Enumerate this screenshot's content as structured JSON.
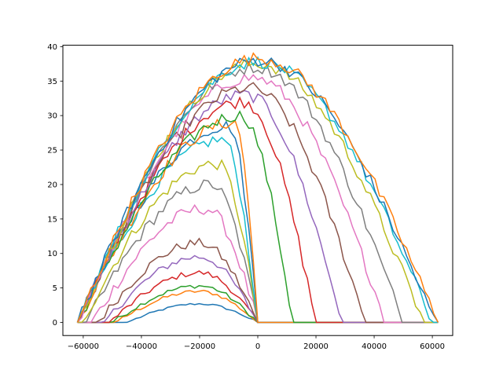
{
  "chart_data": {
    "type": "line",
    "title": "",
    "xlabel": "",
    "ylabel": "",
    "xlim": [
      -67000,
      67000
    ],
    "ylim": [
      -1.9,
      40.2
    ],
    "x_ticks": [
      -60000,
      -40000,
      -20000,
      0,
      20000,
      40000,
      60000
    ],
    "x_tick_labels": [
      "−60000",
      "−40000",
      "−20000",
      "0",
      "20000",
      "40000",
      "60000"
    ],
    "y_ticks": [
      0,
      5,
      10,
      15,
      20,
      25,
      30,
      35,
      40
    ],
    "y_tick_labels": [
      "0",
      "5",
      "10",
      "15",
      "20",
      "25",
      "30",
      "35",
      "40"
    ],
    "grid": false,
    "legend": "none",
    "x_min": -62000,
    "x_max": 62000,
    "series": [
      {
        "color": "#1f77b4",
        "support": [
          -45000,
          0
        ],
        "peak_x": -20000,
        "peak_y": 2.7,
        "right_ramp": 500
      },
      {
        "color": "#ff7f0e",
        "support": [
          -49000,
          0
        ],
        "peak_x": -20000,
        "peak_y": 4.5,
        "right_ramp": 500
      },
      {
        "color": "#2ca02c",
        "support": [
          -50000,
          0
        ],
        "peak_x": -20000,
        "peak_y": 5.3,
        "right_ramp": 500
      },
      {
        "color": "#d62728",
        "support": [
          -51000,
          0
        ],
        "peak_x": -20000,
        "peak_y": 7.2,
        "right_ramp": 500
      },
      {
        "color": "#9467bd",
        "support": [
          -53000,
          0
        ],
        "peak_x": -20000,
        "peak_y": 9.5,
        "right_ramp": 500
      },
      {
        "color": "#8c564b",
        "support": [
          -55000,
          0
        ],
        "peak_x": -20000,
        "peak_y": 11.5,
        "right_ramp": 500
      },
      {
        "color": "#e377c2",
        "support": [
          -57000,
          0
        ],
        "peak_x": -18000,
        "peak_y": 16.5,
        "right_ramp": 500
      },
      {
        "color": "#7f7f7f",
        "support": [
          -59000,
          0
        ],
        "peak_x": -16000,
        "peak_y": 20.0,
        "right_ramp": 500
      },
      {
        "color": "#bcbd22",
        "support": [
          -60500,
          0
        ],
        "peak_x": -14000,
        "peak_y": 23.0,
        "right_ramp": 500
      },
      {
        "color": "#17becf",
        "support": [
          -62000,
          0
        ],
        "peak_x": -12000,
        "peak_y": 26.5,
        "right_ramp": 500
      },
      {
        "color": "#1f77b4",
        "support": [
          -62000,
          0
        ],
        "peak_x": -10000,
        "peak_y": 28.5,
        "right_ramp": 500
      },
      {
        "color": "#ff7f0e",
        "support": [
          -62000,
          0
        ],
        "peak_x": -8000,
        "peak_y": 29.0,
        "right_ramp": 500
      },
      {
        "color": "#2ca02c",
        "support": [
          -62000,
          12000
        ],
        "peak_x": -6000,
        "peak_y": 30.0,
        "right_ramp": 12000
      },
      {
        "color": "#d62728",
        "support": [
          -62000,
          20000
        ],
        "peak_x": -5000,
        "peak_y": 32.0,
        "right_ramp": 20000
      },
      {
        "color": "#9467bd",
        "support": [
          -62000,
          29000
        ],
        "peak_x": -4000,
        "peak_y": 33.0,
        "right_ramp": 29000
      },
      {
        "color": "#8c564b",
        "support": [
          -62000,
          37000
        ],
        "peak_x": -3000,
        "peak_y": 34.0,
        "right_ramp": 37000
      },
      {
        "color": "#e377c2",
        "support": [
          -62000,
          44000
        ],
        "peak_x": -2000,
        "peak_y": 35.5,
        "right_ramp": 44000
      },
      {
        "color": "#7f7f7f",
        "support": [
          -62000,
          50000
        ],
        "peak_x": -1000,
        "peak_y": 37.0,
        "right_ramp": 50000
      },
      {
        "color": "#bcbd22",
        "support": [
          -62000,
          57000
        ],
        "peak_x": -500,
        "peak_y": 37.5,
        "right_ramp": 57000
      },
      {
        "color": "#17becf",
        "support": [
          -62000,
          60000
        ],
        "peak_x": 0,
        "peak_y": 37.8,
        "right_ramp": 60000
      },
      {
        "color": "#1f77b4",
        "support": [
          -62000,
          61000
        ],
        "peak_x": 0,
        "peak_y": 38.0,
        "right_ramp": 61000
      },
      {
        "color": "#ff7f0e",
        "support": [
          -62000,
          62000
        ],
        "peak_x": 0,
        "peak_y": 38.3,
        "right_ramp": 62000
      }
    ]
  }
}
